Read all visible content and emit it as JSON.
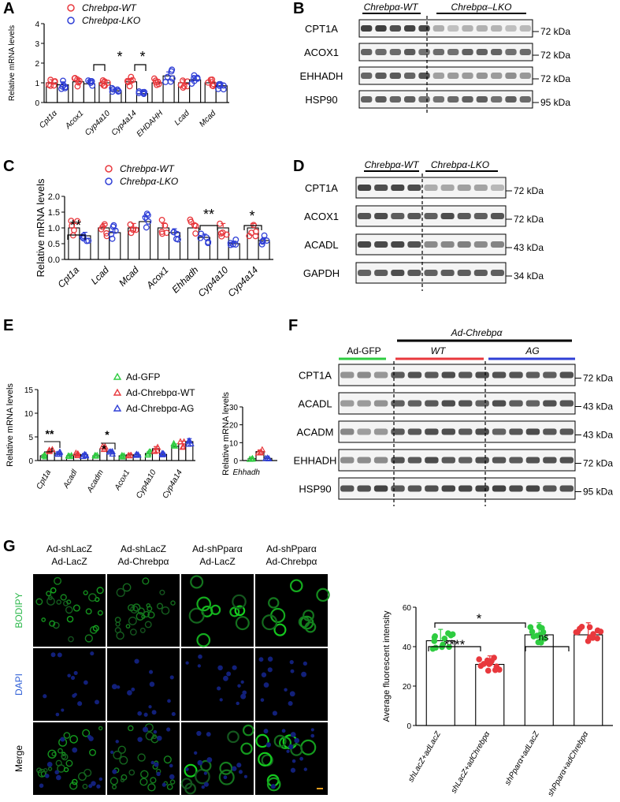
{
  "figure": {
    "panel_letters": [
      "A",
      "B",
      "C",
      "D",
      "E",
      "F",
      "G"
    ]
  },
  "panel_a": {
    "legend": [
      {
        "label": "Chrebpα-WT",
        "color": "#e8383d"
      },
      {
        "label": "Chrebpα-LKO",
        "color": "#2f3fd6"
      }
    ],
    "sig": [
      "*",
      "*"
    ]
  },
  "panel_b": {
    "group_wt": "Chrebpα-WT",
    "group_lko": "Chrebpα–LKO",
    "blots": [
      {
        "name": "CPT1A",
        "kda": "72 kDa"
      },
      {
        "name": "ACOX1",
        "kda": "72 kDa"
      },
      {
        "name": "EHHADH",
        "kda": "72 kDa"
      },
      {
        "name": "HSP90",
        "kda": "95 kDa"
      }
    ]
  },
  "panel_c": {
    "legend": [
      {
        "label": "Chrebpα-WT",
        "color": "#e8383d"
      },
      {
        "label": "Chrebpα-LKO",
        "color": "#2f3fd6"
      }
    ],
    "sig": [
      "**",
      "**",
      "*"
    ]
  },
  "panel_d": {
    "group_wt": "Chrebpα-WT",
    "group_lko": "Chrebpα-LKO",
    "blots": [
      {
        "name": "CPT1A",
        "kda": "72 kDa"
      },
      {
        "name": "ACOX1",
        "kda": "72 kDa"
      },
      {
        "name": "ACADL",
        "kda": "43 kDa"
      },
      {
        "name": "GAPDH",
        "kda": "34 kDa"
      }
    ]
  },
  "panel_e": {
    "legend": [
      {
        "label": "Ad-GFP",
        "color": "#2ecc40"
      },
      {
        "label": "Ad-Chrebpα-WT",
        "color": "#e8383d"
      },
      {
        "label": "Ad-Chrebpα-AG",
        "color": "#2f3fd6"
      }
    ],
    "sig": [
      "**",
      "*",
      "*"
    ]
  },
  "panel_f": {
    "header": "Ad-Chrebpα",
    "group_gfp": "Ad-GFP",
    "group_wt": "WT",
    "group_ag": "AG",
    "blots": [
      {
        "name": "CPT1A",
        "kda": "72 kDa"
      },
      {
        "name": "ACADL",
        "kda": "43 kDa"
      },
      {
        "name": "ACADM",
        "kda": "43 kDa"
      },
      {
        "name": "EHHADH",
        "kda": "72 kDa"
      },
      {
        "name": "HSP90",
        "kda": "95 kDa"
      }
    ]
  },
  "panel_g": {
    "columns": [
      {
        "line1": "Ad-shLacZ",
        "line2": "Ad-LacZ"
      },
      {
        "line1": "Ad-shLacZ",
        "line2": "Ad-Chrebpα"
      },
      {
        "line1": "Ad-shPparα",
        "line2": "Ad-LacZ"
      },
      {
        "line1": "Ad-shPparα",
        "line2": "Ad-Chrebpα"
      }
    ],
    "rows": [
      {
        "label": "BODIPY",
        "color": "#2db84c"
      },
      {
        "label": "DAPI",
        "color": "#2f5fd6"
      },
      {
        "label": "Merge",
        "color": "#000000"
      }
    ],
    "sig": [
      "*",
      "****",
      "ns"
    ]
  },
  "chart_data": [
    {
      "id": "A",
      "type": "bar",
      "categories": [
        "Cpt1α",
        "Acox1",
        "Cyp4a10",
        "Cyp4a14",
        "EHDAHH",
        "Lcad",
        "Mcad"
      ],
      "ylabel": "Relative mRNA levels",
      "ylim": [
        0,
        4
      ],
      "yticks": [
        0,
        1,
        2,
        3,
        4
      ],
      "series": [
        {
          "name": "Chrebpα-WT",
          "color": "#e8383d",
          "values": [
            1.0,
            1.05,
            1.0,
            1.05,
            1.0,
            1.0,
            1.0
          ]
        },
        {
          "name": "Chrebpα-LKO",
          "color": "#2f3fd6",
          "values": [
            0.9,
            0.95,
            0.6,
            0.45,
            1.35,
            1.15,
            0.85
          ]
        }
      ]
    },
    {
      "id": "C",
      "type": "bar",
      "categories": [
        "Cpt1a",
        "Lcad",
        "Mcad",
        "Acox1",
        "Ehhadh",
        "Cyp4a10",
        "Cyp4a14"
      ],
      "ylabel": "Relative mRNA levels",
      "ylim": [
        0,
        2
      ],
      "yticks": [
        0.0,
        0.5,
        1.0,
        1.5,
        2.0
      ],
      "series": [
        {
          "name": "Chrebpα-WT",
          "color": "#e8383d",
          "values": [
            1.0,
            1.0,
            1.0,
            1.0,
            1.0,
            1.0,
            1.0
          ]
        },
        {
          "name": "Chrebpα-LKO",
          "color": "#2f3fd6",
          "values": [
            0.75,
            0.85,
            1.2,
            0.85,
            0.7,
            0.5,
            0.6
          ]
        }
      ]
    },
    {
      "id": "E",
      "type": "bar",
      "categories": [
        "Cpt1a",
        "Acadl",
        "Acadm",
        "Acox1",
        "Cyp4a10",
        "Cyp4a14"
      ],
      "ylabel": "Relative mRNA levels",
      "ylim": [
        0,
        15
      ],
      "yticks": [
        0,
        5,
        10,
        15
      ],
      "series": [
        {
          "name": "Ad-GFP",
          "color": "#2ecc40",
          "values": [
            1.0,
            1.0,
            1.0,
            1.0,
            1.5,
            3.0
          ]
        },
        {
          "name": "Ad-Chrebpα-WT",
          "color": "#e8383d",
          "values": [
            2.0,
            1.3,
            2.5,
            1.2,
            2.5,
            3.5
          ]
        },
        {
          "name": "Ad-Chrebpα-AG",
          "color": "#2f3fd6",
          "values": [
            1.5,
            1.2,
            1.8,
            1.2,
            1.3,
            4.0
          ]
        }
      ]
    },
    {
      "id": "E2",
      "type": "bar",
      "categories": [
        "Ehhadh"
      ],
      "ylabel": "Relative mRNA levels",
      "ylim": [
        0,
        30
      ],
      "yticks": [
        0,
        10,
        20,
        30
      ],
      "series": [
        {
          "name": "Ad-GFP",
          "color": "#2ecc40",
          "values": [
            1.0
          ]
        },
        {
          "name": "Ad-Chrebpα-WT",
          "color": "#e8383d",
          "values": [
            5.0
          ]
        },
        {
          "name": "Ad-Chrebpα-AG",
          "color": "#2f3fd6",
          "values": [
            1.2
          ]
        }
      ]
    },
    {
      "id": "G",
      "type": "bar",
      "categories": [
        "shLacZ+adLacZ",
        "shLacZ+adChrebpα",
        "shPparα+adLacZ",
        "shPparα+adChrebpα"
      ],
      "ylabel": "Average fluorescent intensity",
      "ylim": [
        0,
        60
      ],
      "yticks": [
        0,
        20,
        40,
        60
      ],
      "colors": [
        "#2ecc40",
        "#e8383d",
        "#2ecc40",
        "#e8383d"
      ],
      "values": [
        43,
        31,
        46,
        46
      ]
    }
  ]
}
